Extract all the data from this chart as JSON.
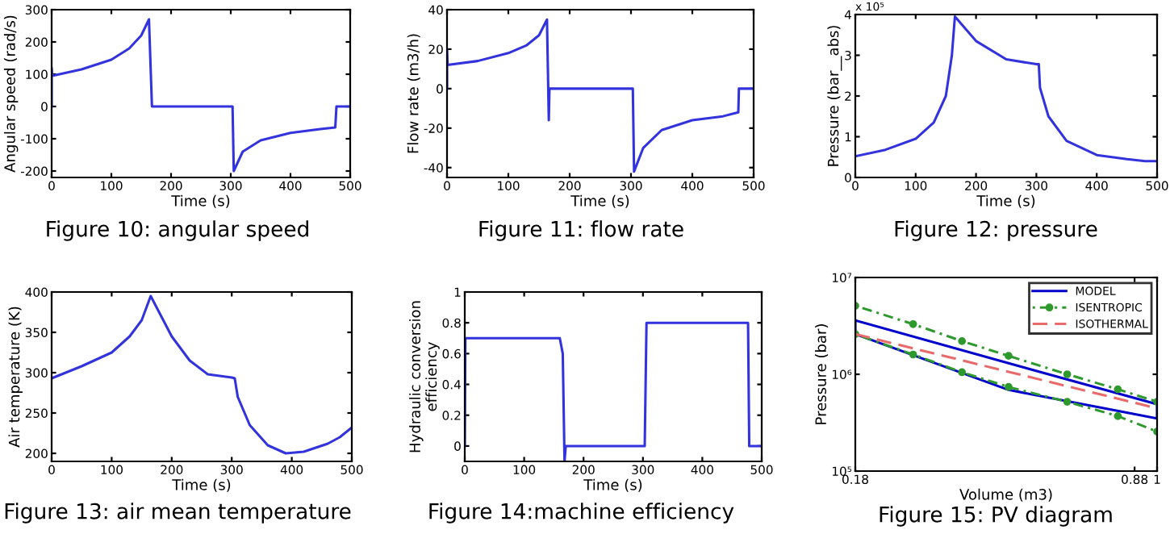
{
  "chart_data": [
    {
      "type": "line",
      "xlabel": "Time (s)",
      "ylabel": "Angular speed (rad/s)",
      "annotations": [
        "Figure 10: angular speed"
      ],
      "xlim": [
        0,
        500
      ],
      "ylim": [
        -220,
        300
      ],
      "xticks": [
        0,
        100,
        200,
        300,
        400,
        500
      ],
      "yticks": [
        -200,
        -100,
        0,
        100,
        200,
        300
      ],
      "series": [
        {
          "color": "#3333dd",
          "x": [
            0,
            0,
            1,
            50,
            100,
            130,
            150,
            163,
            168,
            303,
            305,
            320,
            350,
            400,
            450,
            475,
            477,
            500
          ],
          "values": [
            0,
            120,
            95,
            115,
            145,
            180,
            220,
            270,
            0,
            0,
            -200,
            -140,
            -105,
            -82,
            -70,
            -65,
            0,
            0
          ]
        }
      ]
    },
    {
      "type": "line",
      "xlabel": "Time (s)",
      "ylabel": "Flow rate (m3/h)",
      "annotations": [
        "Figure 11: flow rate"
      ],
      "xlim": [
        0,
        500
      ],
      "ylim": [
        -45,
        40
      ],
      "xticks": [
        0,
        100,
        200,
        300,
        400,
        500
      ],
      "yticks": [
        -40,
        -20,
        0,
        20,
        40
      ],
      "series": [
        {
          "color": "#3333dd",
          "x": [
            0,
            0,
            1,
            50,
            100,
            130,
            150,
            163,
            166,
            167,
            303,
            305,
            320,
            350,
            400,
            450,
            475,
            476,
            500
          ],
          "values": [
            0,
            20,
            12,
            14,
            18,
            22,
            27,
            35,
            -16,
            0,
            0,
            -42,
            -30,
            -21,
            -16,
            -14,
            -12,
            0,
            0
          ]
        }
      ]
    },
    {
      "type": "line",
      "xlabel": "Time (s)",
      "ylabel": "Pressure (bar__abs)",
      "annotations": [
        "Figure 12: pressure",
        "x 10⁵"
      ],
      "xlim": [
        0,
        500
      ],
      "ylim": [
        0,
        4
      ],
      "xticks": [
        0,
        100,
        200,
        300,
        400,
        500
      ],
      "yticks": [
        0,
        1,
        2,
        3,
        4
      ],
      "series": [
        {
          "color": "#3333dd",
          "x": [
            0,
            50,
            100,
            130,
            150,
            160,
            165,
            200,
            250,
            300,
            304,
            306,
            320,
            350,
            400,
            450,
            480,
            500
          ],
          "values": [
            0.52,
            0.68,
            0.95,
            1.35,
            2.0,
            3.0,
            3.95,
            3.35,
            2.9,
            2.78,
            2.78,
            2.2,
            1.5,
            0.9,
            0.55,
            0.45,
            0.4,
            0.4
          ]
        }
      ]
    },
    {
      "type": "line",
      "xlabel": "Time (s)",
      "ylabel": "Air temperature (K)",
      "annotations": [
        "Figure 13: air mean temperature"
      ],
      "xlim": [
        0,
        500
      ],
      "ylim": [
        190,
        400
      ],
      "xticks": [
        0,
        100,
        200,
        300,
        400,
        500
      ],
      "yticks": [
        200,
        250,
        300,
        350,
        400
      ],
      "series": [
        {
          "color": "#3333dd",
          "x": [
            0,
            50,
            100,
            130,
            150,
            165,
            200,
            230,
            260,
            300,
            305,
            310,
            330,
            360,
            390,
            420,
            460,
            480,
            500
          ],
          "values": [
            293,
            308,
            325,
            345,
            365,
            395,
            345,
            315,
            298,
            294,
            293,
            270,
            235,
            210,
            200,
            202,
            212,
            220,
            232
          ]
        }
      ]
    },
    {
      "type": "line",
      "xlabel": "Time (s)",
      "ylabel": "Hydraulic conversion\nefficiency",
      "annotations": [
        "Figure 14:machine efficiency"
      ],
      "xlim": [
        0,
        500
      ],
      "ylim": [
        -0.1,
        1
      ],
      "xticks": [
        0,
        100,
        200,
        300,
        400,
        500
      ],
      "yticks": [
        0,
        0.2,
        0.4,
        0.6,
        0.8,
        1
      ],
      "series": [
        {
          "color": "#3333dd",
          "x": [
            0,
            1,
            160,
            165,
            168,
            170,
            303,
            306,
            477,
            479,
            500
          ],
          "values": [
            0,
            0.7,
            0.7,
            0.6,
            -0.1,
            0,
            0,
            0.8,
            0.8,
            0,
            0
          ]
        }
      ]
    },
    {
      "type": "line",
      "xlabel": "Volume (m3)",
      "ylabel": "Pressure (bar)",
      "annotations": [
        "Figure 15: PV diagram"
      ],
      "log": "xy",
      "legend": "top right",
      "xlim": [
        0.18,
        1
      ],
      "ylim": [
        100000,
        10000000
      ],
      "xticks": [
        0.18,
        0.88,
        1
      ],
      "yticks": [
        {
          "value": 100000,
          "label": "10⁵"
        },
        {
          "value": 1000000,
          "label": "10⁶"
        },
        {
          "value": 10000000,
          "label": "10⁷"
        }
      ],
      "series": [
        {
          "name": "MODEL",
          "color": "#0000cc",
          "line_style": "solid",
          "marker": "none",
          "x": [
            0.18,
            0.43,
            1
          ],
          "values": [
            3600000,
            1300000,
            490000
          ]
        },
        {
          "color": "#0000cc",
          "line_style": "solid",
          "marker": "none",
          "x": [
            0.18,
            0.18,
            0.43,
            1,
            1
          ],
          "values": [
            3600000,
            2600000,
            690000,
            350000,
            490000
          ]
        },
        {
          "name": "ISENTROPIC",
          "color": "#2e9a2e",
          "line_style": "dotted",
          "marker": "circle",
          "x": [
            0.18,
            0.25,
            0.33,
            0.43,
            0.6,
            0.8,
            1
          ],
          "values": [
            5100000,
            3300000,
            2200000,
            1550000,
            1000000,
            700000,
            520000
          ]
        },
        {
          "color": "#2e9a2e",
          "line_style": "dotted",
          "marker": "circle",
          "x": [
            0.18,
            0.25,
            0.33,
            0.43,
            0.6,
            0.8,
            1
          ],
          "values": [
            2600000,
            1600000,
            1050000,
            740000,
            520000,
            370000,
            256000
          ]
        },
        {
          "name": "ISOTHERMAL",
          "color": "#e86a6a",
          "line_style": "dashed",
          "marker": "none",
          "x": [
            0.18,
            1
          ],
          "values": [
            2600000,
            445000
          ]
        }
      ]
    }
  ]
}
